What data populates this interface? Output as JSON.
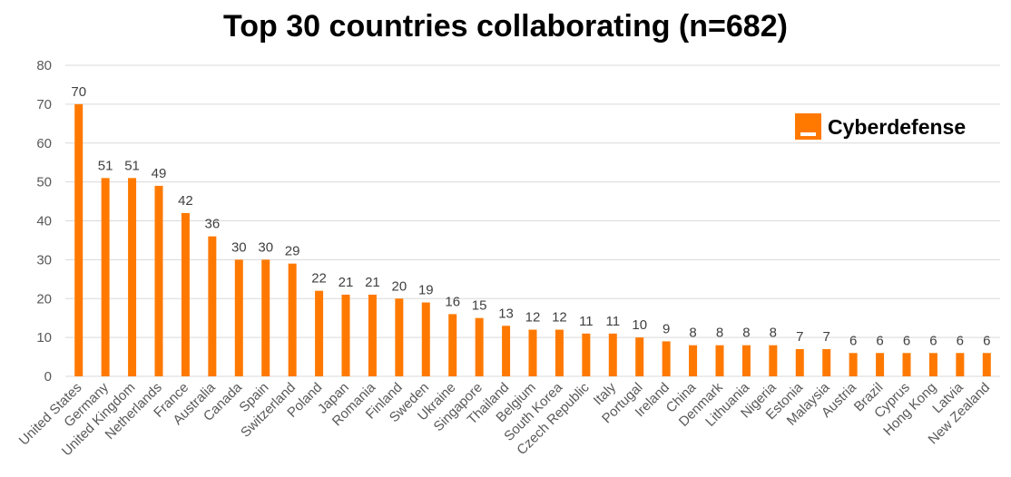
{
  "chart_data": {
    "type": "bar",
    "title": "Top 30 countries collaborating (n=682)",
    "xlabel": "",
    "ylabel": "",
    "ylim": [
      0,
      80
    ],
    "yticks": [
      0,
      10,
      20,
      30,
      40,
      50,
      60,
      70,
      80
    ],
    "grid": true,
    "legend": "none",
    "data_labels": true,
    "categories": [
      "United States",
      "Germany",
      "United Kingdom",
      "Netherlands",
      "France",
      "Australia",
      "Canada",
      "Spain",
      "Switzerland",
      "Poland",
      "Japan",
      "Romania",
      "Finland",
      "Sweden",
      "Ukraine",
      "Singapore",
      "Thailand",
      "Belgium",
      "South Korea",
      "Czech Republic",
      "Italy",
      "Portugal",
      "Ireland",
      "China",
      "Denmark",
      "Lithuania",
      "Nigeria",
      "Estonia",
      "Malaysia",
      "Austria",
      "Brazil",
      "Cyprus",
      "Hong Kong",
      "Latvia",
      "New Zealand"
    ],
    "values": [
      70,
      51,
      51,
      49,
      42,
      36,
      30,
      30,
      29,
      22,
      21,
      21,
      20,
      19,
      16,
      15,
      13,
      12,
      12,
      11,
      11,
      10,
      9,
      8,
      8,
      8,
      8,
      7,
      7,
      6,
      6,
      6,
      6,
      6,
      6
    ]
  },
  "brand": {
    "name": "Cyberdefense",
    "logo_icon": "orange-square-logo-icon"
  },
  "colors": {
    "bar": "#ff7900",
    "grid": "#d9d9d9",
    "tick_text": "#595959",
    "label_text": "#404040",
    "title": "#000000",
    "logo": "#ff7900"
  }
}
